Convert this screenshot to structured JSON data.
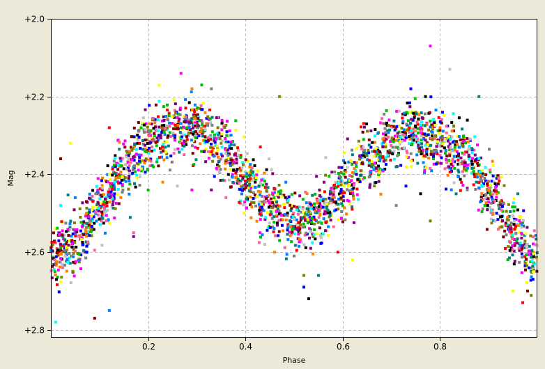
{
  "chart_data": {
    "type": "scatter",
    "title": "",
    "xlabel": "Phase",
    "ylabel": "Mag",
    "xlim": [
      0.0,
      1.0
    ],
    "ylim": [
      2.0,
      2.82
    ],
    "y_inverted": true,
    "grid": true,
    "x_ticks": [
      0.2,
      0.4,
      0.6,
      0.8
    ],
    "x_tick_labels": [
      "0.2",
      "0.4",
      "0.6",
      "0.8"
    ],
    "y_ticks": [
      2.0,
      2.2,
      2.4,
      2.6,
      2.8
    ],
    "y_tick_labels": [
      "+2.0",
      "+2.2",
      "+2.4",
      "+2.6",
      "+2.8"
    ],
    "marker_colors": [
      "#ff0000",
      "#0000ff",
      "#00c000",
      "#ff00ff",
      "#00ffff",
      "#ffff00",
      "#000000",
      "#808080",
      "#c0c0c0",
      "#800080",
      "#800000",
      "#008080",
      "#808000",
      "#ff8000",
      "#ff60a0",
      "#0080ff"
    ],
    "curve": {
      "description_points": [
        {
          "x": 0.0,
          "y": 2.62
        },
        {
          "x": 0.05,
          "y": 2.58
        },
        {
          "x": 0.1,
          "y": 2.48
        },
        {
          "x": 0.15,
          "y": 2.38
        },
        {
          "x": 0.2,
          "y": 2.32
        },
        {
          "x": 0.25,
          "y": 2.28
        },
        {
          "x": 0.3,
          "y": 2.28
        },
        {
          "x": 0.35,
          "y": 2.33
        },
        {
          "x": 0.4,
          "y": 2.41
        },
        {
          "x": 0.45,
          "y": 2.49
        },
        {
          "x": 0.5,
          "y": 2.53
        },
        {
          "x": 0.55,
          "y": 2.51
        },
        {
          "x": 0.6,
          "y": 2.44
        },
        {
          "x": 0.65,
          "y": 2.36
        },
        {
          "x": 0.7,
          "y": 2.31
        },
        {
          "x": 0.75,
          "y": 2.29
        },
        {
          "x": 0.8,
          "y": 2.31
        },
        {
          "x": 0.85,
          "y": 2.36
        },
        {
          "x": 0.9,
          "y": 2.44
        },
        {
          "x": 0.95,
          "y": 2.55
        },
        {
          "x": 1.0,
          "y": 2.62
        }
      ],
      "scatter_sd": 0.05,
      "n_points": 2600
    },
    "outliers": [
      {
        "x": 0.78,
        "y": 2.07
      },
      {
        "x": 0.82,
        "y": 2.13
      },
      {
        "x": 0.29,
        "y": 2.18
      },
      {
        "x": 0.31,
        "y": 2.17
      },
      {
        "x": 0.33,
        "y": 2.18
      },
      {
        "x": 0.47,
        "y": 2.2
      },
      {
        "x": 0.74,
        "y": 2.18
      },
      {
        "x": 0.77,
        "y": 2.2
      },
      {
        "x": 0.88,
        "y": 2.2
      },
      {
        "x": 0.12,
        "y": 2.28
      },
      {
        "x": 0.04,
        "y": 2.32
      },
      {
        "x": 0.02,
        "y": 2.36
      },
      {
        "x": 0.05,
        "y": 2.46
      },
      {
        "x": 0.02,
        "y": 2.48
      },
      {
        "x": 0.17,
        "y": 2.56
      },
      {
        "x": 0.17,
        "y": 2.55
      },
      {
        "x": 0.43,
        "y": 2.55
      },
      {
        "x": 0.44,
        "y": 2.58
      },
      {
        "x": 0.46,
        "y": 2.6
      },
      {
        "x": 0.47,
        "y": 2.57
      },
      {
        "x": 0.5,
        "y": 2.61
      },
      {
        "x": 0.52,
        "y": 2.66
      },
      {
        "x": 0.52,
        "y": 2.69
      },
      {
        "x": 0.53,
        "y": 2.72
      },
      {
        "x": 0.55,
        "y": 2.66
      },
      {
        "x": 0.59,
        "y": 2.6
      },
      {
        "x": 0.62,
        "y": 2.62
      },
      {
        "x": 0.09,
        "y": 2.77
      },
      {
        "x": 0.12,
        "y": 2.75
      },
      {
        "x": 0.01,
        "y": 2.78
      },
      {
        "x": 0.33,
        "y": 2.44
      },
      {
        "x": 0.36,
        "y": 2.46
      },
      {
        "x": 0.29,
        "y": 2.44
      },
      {
        "x": 0.26,
        "y": 2.43
      },
      {
        "x": 0.23,
        "y": 2.42
      },
      {
        "x": 0.2,
        "y": 2.44
      },
      {
        "x": 0.71,
        "y": 2.48
      },
      {
        "x": 0.78,
        "y": 2.52
      },
      {
        "x": 0.73,
        "y": 2.43
      },
      {
        "x": 0.76,
        "y": 2.45
      },
      {
        "x": 0.96,
        "y": 2.45
      },
      {
        "x": 0.97,
        "y": 2.73
      },
      {
        "x": 0.95,
        "y": 2.7
      },
      {
        "x": 0.98,
        "y": 2.7
      }
    ]
  }
}
